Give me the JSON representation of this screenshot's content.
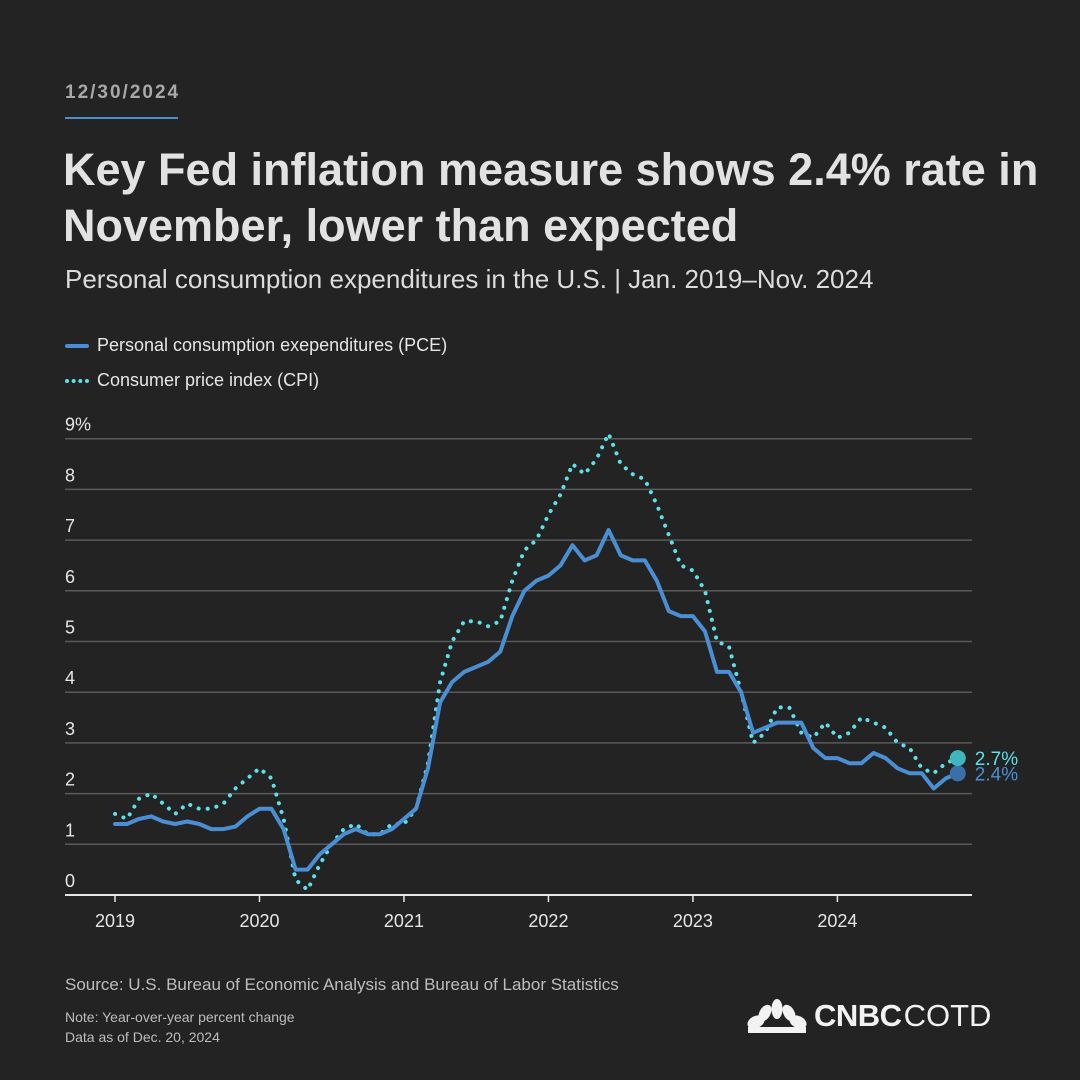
{
  "header": {
    "date": "12/30/2024",
    "title": "Key Fed inflation measure shows 2.4% rate in November, lower than expected",
    "subtitle": "Personal consumption expenditures in the U.S. | Jan. 2019–Nov. 2024"
  },
  "footer": {
    "source": "Source: U.S. Bureau of Economic Analysis and Bureau of Labor Statistics",
    "note1": "Note: Year-over-year percent change",
    "note2": "Data as of Dec. 20, 2024",
    "logo": "CNBC COTD"
  },
  "chart_data": {
    "type": "line",
    "title": "Key Fed inflation measure shows 2.4% rate in November, lower than expected",
    "subtitle": "Personal consumption expenditures in the U.S. | Jan. 2019–Nov. 2024",
    "x_start": "2019-01",
    "x_end": "2024-11",
    "x_frequency": "monthly",
    "x_ticks": [
      "2019",
      "2020",
      "2021",
      "2022",
      "2023",
      "2024"
    ],
    "y_ticks": [
      "0",
      "1",
      "2",
      "3",
      "4",
      "5",
      "6",
      "7",
      "8",
      "9%"
    ],
    "ylim": [
      0,
      9
    ],
    "grid": true,
    "legend": "top-left",
    "series": [
      {
        "name": "Personal consumption exependitures (PCE)",
        "style": "solid",
        "color": "#4a8fd4",
        "end_label": "2.4%",
        "values": [
          1.4,
          1.4,
          1.5,
          1.55,
          1.45,
          1.4,
          1.45,
          1.4,
          1.3,
          1.3,
          1.35,
          1.55,
          1.7,
          1.7,
          1.3,
          0.5,
          0.5,
          0.8,
          1.0,
          1.2,
          1.3,
          1.2,
          1.2,
          1.3,
          1.5,
          1.7,
          2.5,
          3.8,
          4.2,
          4.4,
          4.5,
          4.6,
          4.8,
          5.5,
          6.0,
          6.2,
          6.3,
          6.5,
          6.9,
          6.6,
          6.7,
          7.2,
          6.7,
          6.6,
          6.6,
          6.2,
          5.6,
          5.5,
          5.5,
          5.2,
          4.4,
          4.4,
          4.0,
          3.2,
          3.3,
          3.4,
          3.4,
          3.4,
          2.9,
          2.7,
          2.7,
          2.6,
          2.6,
          2.8,
          2.7,
          2.5,
          2.4,
          2.4,
          2.1,
          2.3,
          2.4
        ]
      },
      {
        "name": "Consumer price index (CPI)",
        "style": "dotted",
        "color": "#5ce0ea",
        "end_label": "2.7%",
        "values": [
          1.6,
          1.5,
          1.9,
          2.0,
          1.8,
          1.6,
          1.8,
          1.7,
          1.7,
          1.8,
          2.1,
          2.3,
          2.5,
          2.3,
          1.5,
          0.3,
          0.1,
          0.6,
          1.0,
          1.3,
          1.4,
          1.2,
          1.2,
          1.4,
          1.4,
          1.7,
          2.6,
          4.2,
          5.0,
          5.4,
          5.4,
          5.3,
          5.4,
          6.2,
          6.8,
          7.0,
          7.5,
          7.9,
          8.5,
          8.3,
          8.6,
          9.1,
          8.5,
          8.3,
          8.2,
          7.7,
          7.1,
          6.5,
          6.4,
          6.0,
          5.0,
          4.9,
          4.0,
          3.0,
          3.2,
          3.7,
          3.7,
          3.2,
          3.1,
          3.4,
          3.1,
          3.2,
          3.5,
          3.4,
          3.3,
          3.0,
          2.9,
          2.5,
          2.4,
          2.6,
          2.7
        ]
      }
    ]
  }
}
